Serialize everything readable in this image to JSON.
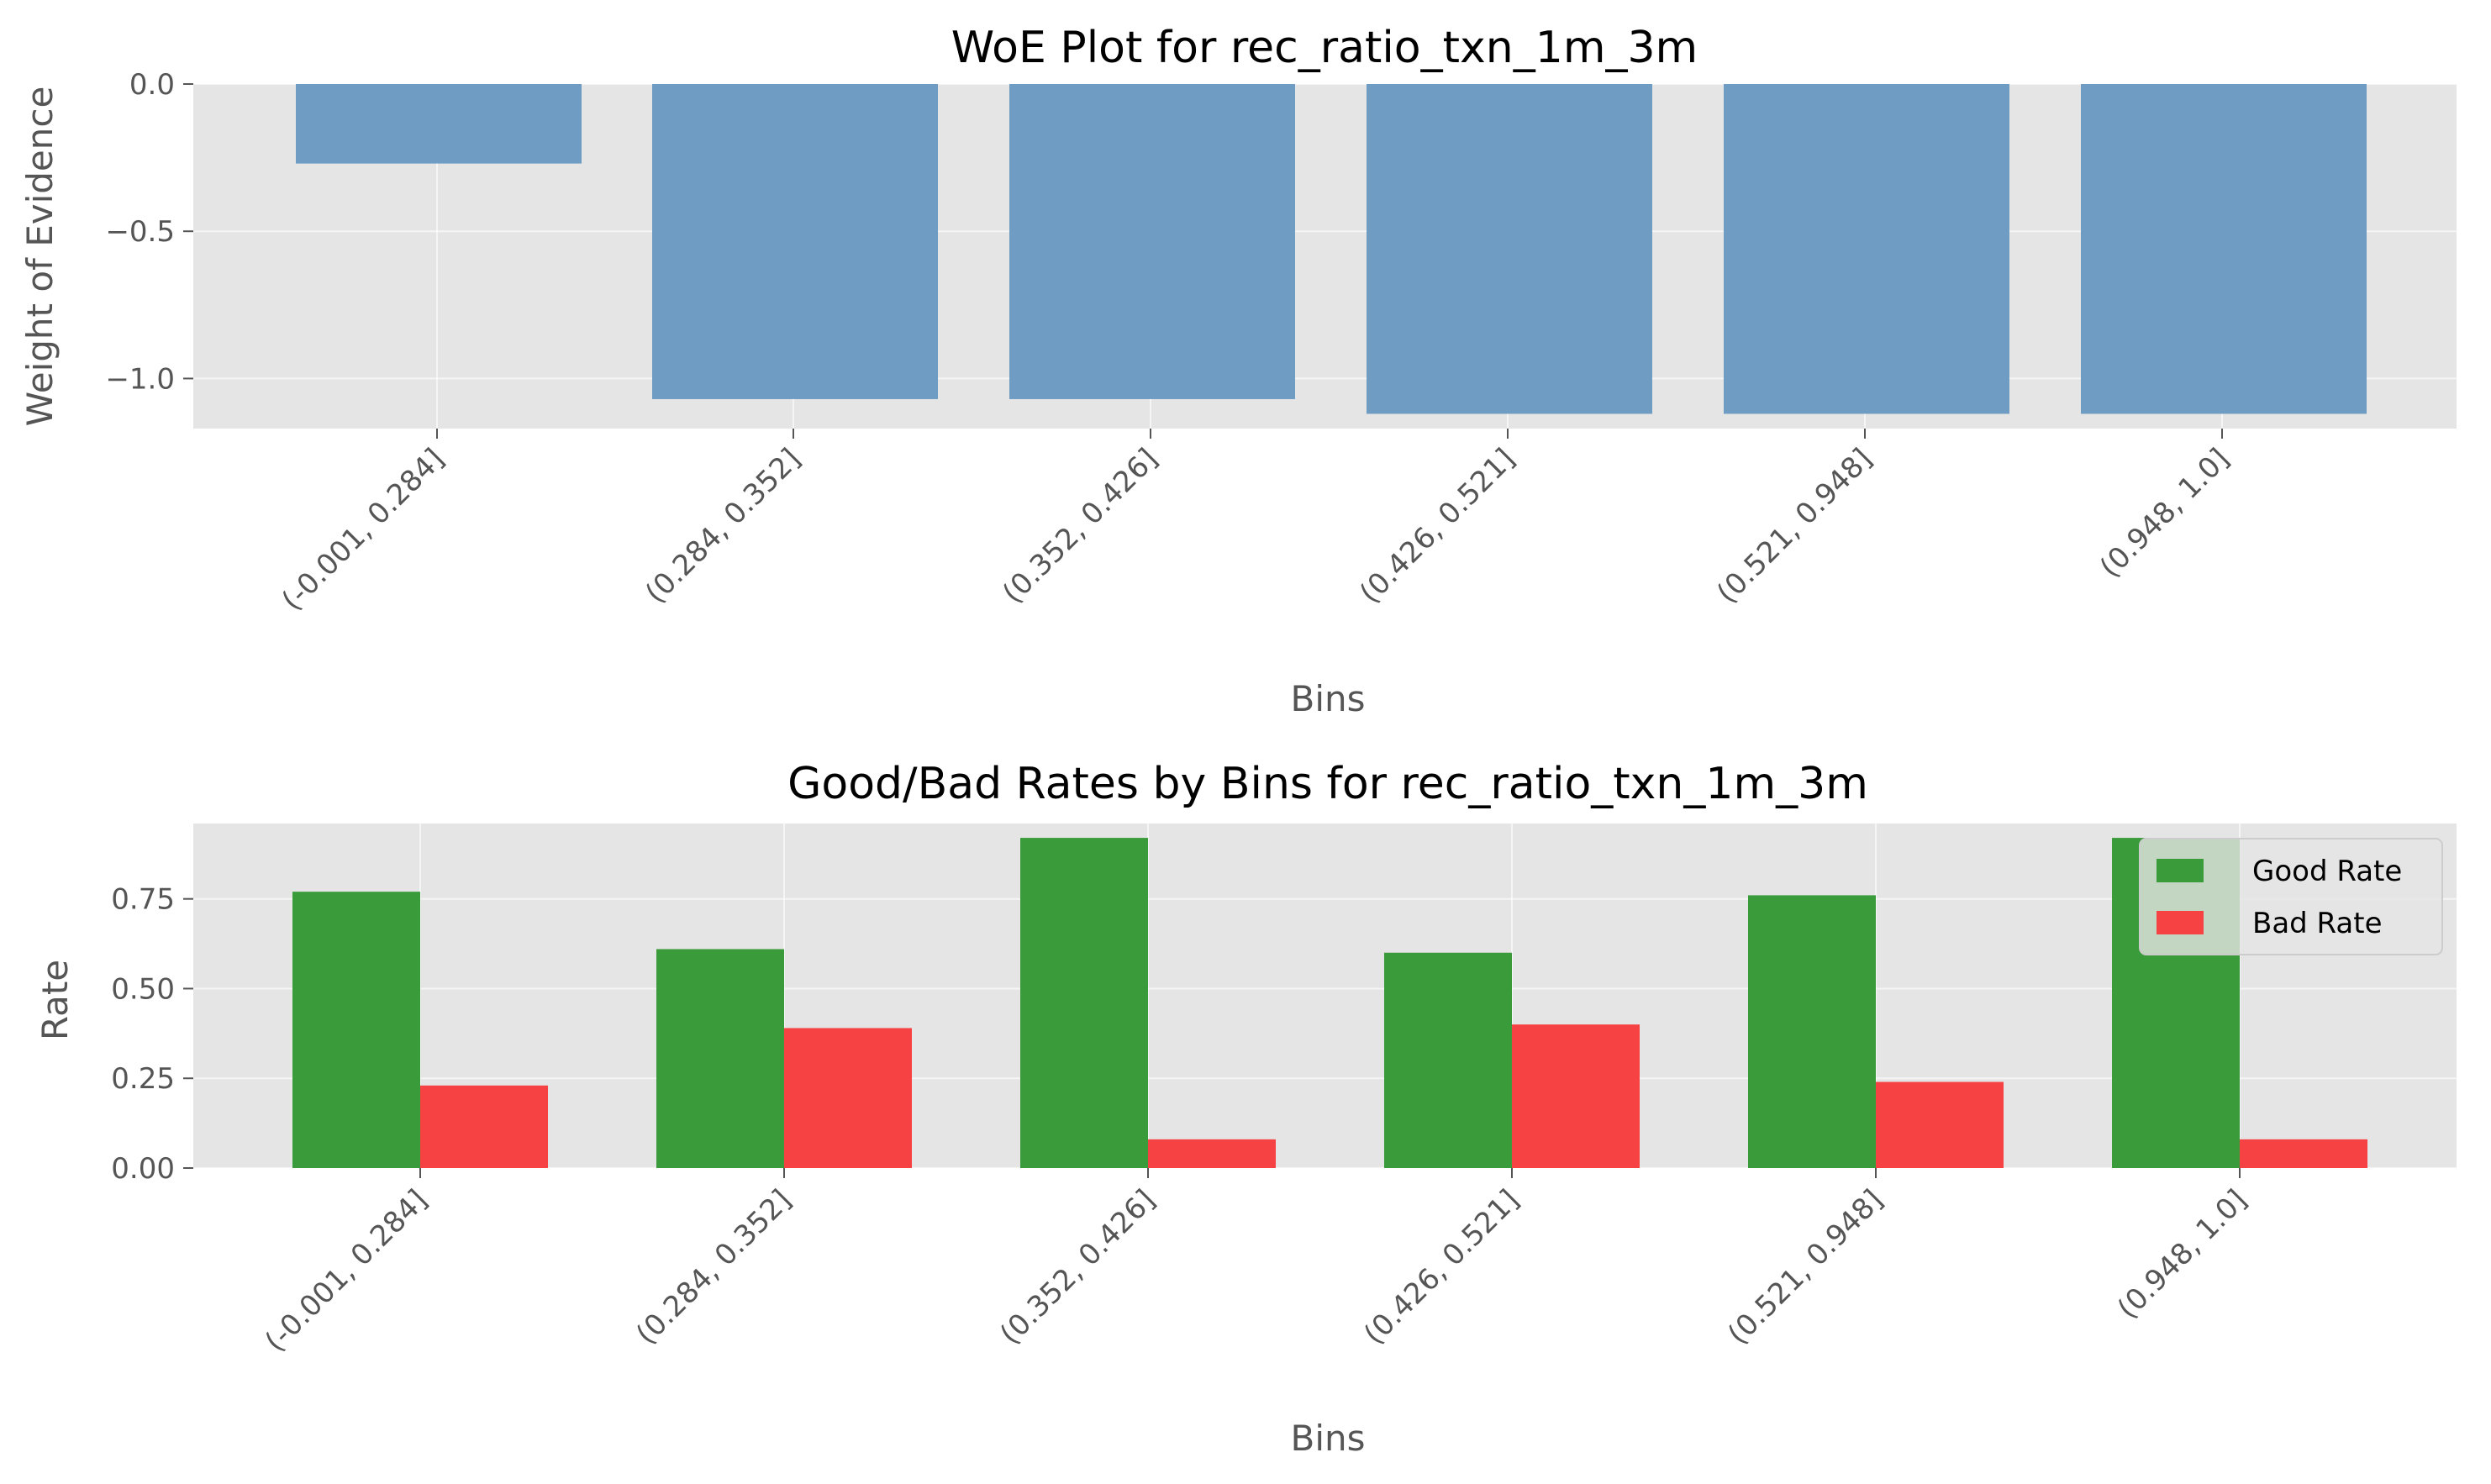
{
  "chart_data": [
    {
      "type": "bar",
      "title": "WoE Plot for rec_ratio_txn_1m_3m",
      "xlabel": "Bins",
      "ylabel": "Weight of Evidence",
      "categories": [
        "(-0.001, 0.284]",
        "(0.284, 0.352]",
        "(0.352, 0.426]",
        "(0.426, 0.521]",
        "(0.521, 0.948]",
        "(0.948, 1.0]"
      ],
      "series": [
        {
          "values": [
            -0.27,
            -1.07,
            -1.07,
            -1.12,
            -1.12,
            -1.12
          ],
          "color": "#6f9cc3"
        }
      ],
      "ylim": [
        -1.17,
        0.0
      ],
      "yticks": [
        -1.0,
        -0.5,
        0.0
      ],
      "ytick_labels": [
        "−1.0",
        "−0.5",
        "0.0"
      ],
      "grid": true,
      "background": "#e5e5e5"
    },
    {
      "type": "bar",
      "title": "Good/Bad Rates by Bins for rec_ratio_txn_1m_3m",
      "xlabel": "Bins",
      "ylabel": "Rate",
      "categories": [
        "(-0.001, 0.284]",
        "(0.284, 0.352]",
        "(0.352, 0.426]",
        "(0.426, 0.521]",
        "(0.521, 0.948]",
        "(0.948, 1.0]"
      ],
      "series": [
        {
          "name": "Good Rate",
          "values": [
            0.77,
            0.61,
            0.92,
            0.6,
            0.76,
            0.92
          ],
          "color": "#3a9b3a"
        },
        {
          "name": "Bad Rate",
          "values": [
            0.23,
            0.39,
            0.08,
            0.4,
            0.24,
            0.08
          ],
          "color": "#f64242"
        }
      ],
      "ylim": [
        0.0,
        0.96
      ],
      "yticks": [
        0.0,
        0.25,
        0.5,
        0.75
      ],
      "ytick_labels": [
        "0.00",
        "0.25",
        "0.50",
        "0.75"
      ],
      "grid": true,
      "legend": "top-right",
      "background": "#e5e5e5"
    }
  ]
}
